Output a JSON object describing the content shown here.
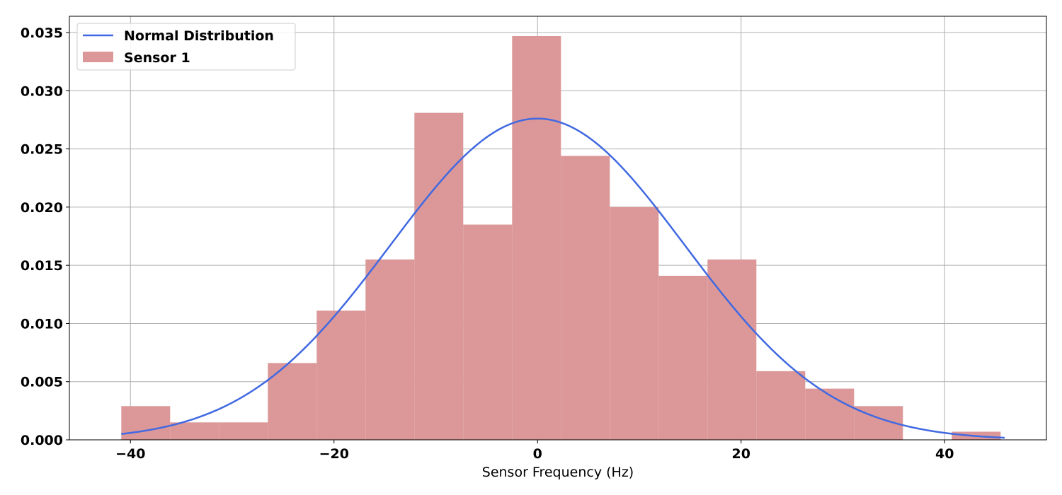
{
  "chart_data": {
    "type": "bar",
    "title": "",
    "xlabel": "Sensor Frequency (Hz)",
    "ylabel": "",
    "xlim": [
      -46,
      50
    ],
    "ylim": [
      0,
      0.0364
    ],
    "grid": true,
    "legend_position": "top-left",
    "x_ticks": [
      -40,
      -20,
      0,
      20,
      40
    ],
    "x_tick_labels": [
      "−40",
      "−20",
      "0",
      "20",
      "40"
    ],
    "y_ticks": [
      0,
      0.005,
      0.01,
      0.015,
      0.02,
      0.025,
      0.03,
      0.035
    ],
    "y_tick_labels": [
      "0.000",
      "0.005",
      "0.010",
      "0.015",
      "0.020",
      "0.025",
      "0.030",
      "0.035"
    ],
    "histogram": {
      "name": "Sensor 1",
      "color": "#dc9898",
      "bin_edges": [
        -40.9,
        -36.1,
        -31.3,
        -26.5,
        -21.7,
        -16.9,
        -12.1,
        -7.3,
        -2.5,
        2.3,
        7.1,
        11.9,
        16.7,
        21.5,
        26.3,
        31.1,
        35.9,
        40.7,
        45.5
      ],
      "values": [
        0.0029,
        0.0015,
        0.0015,
        0.0066,
        0.0111,
        0.0155,
        0.0281,
        0.0185,
        0.0347,
        0.0244,
        0.02,
        0.0141,
        0.0155,
        0.0059,
        0.0044,
        0.0029,
        0.0,
        0.0007
      ]
    },
    "curve": {
      "name": "Normal Distribution",
      "color": "#4169e1",
      "type": "normal_pdf",
      "mean": 0.0,
      "std": 14.45,
      "x_range": [
        -40.9,
        45.9
      ]
    }
  }
}
